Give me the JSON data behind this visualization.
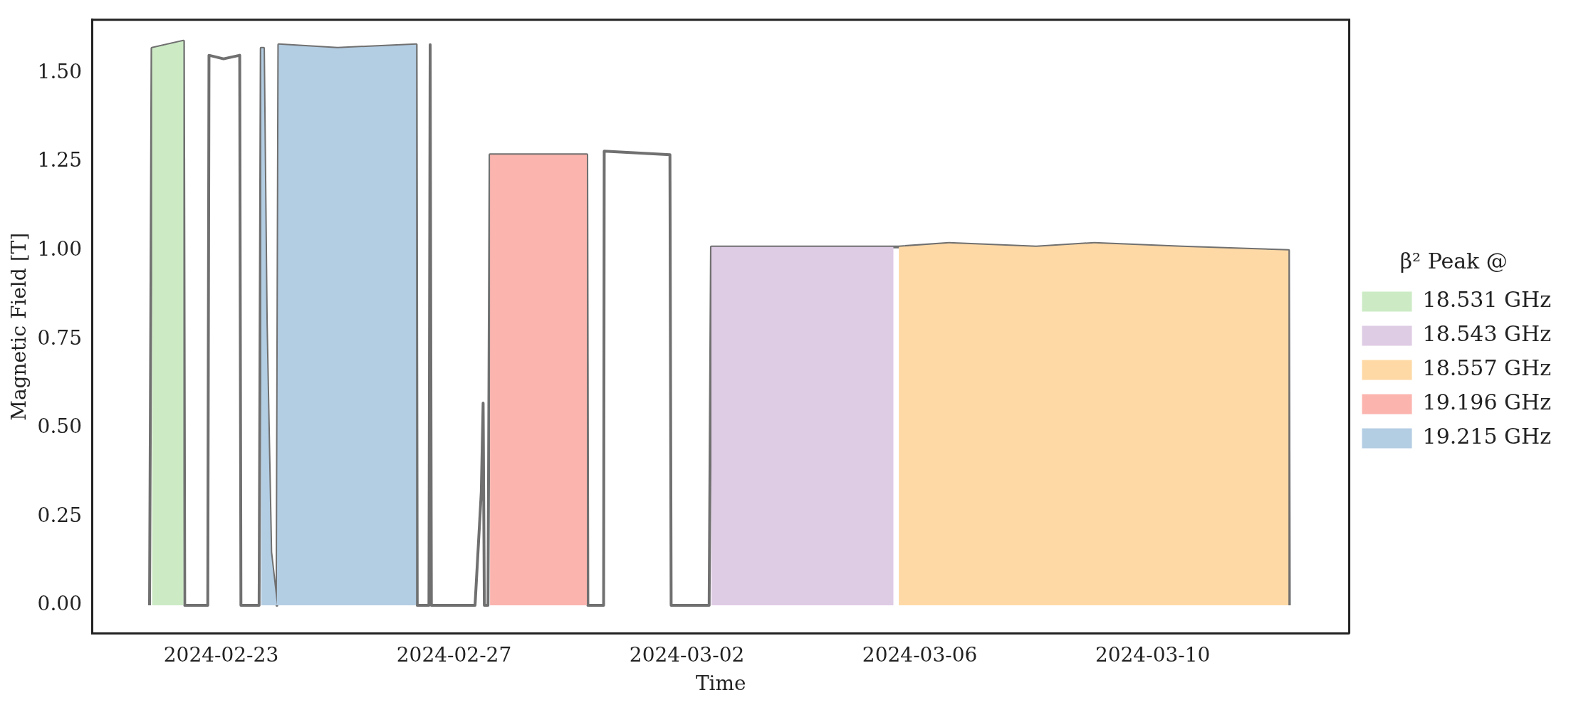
{
  "chart_data": {
    "type": "line",
    "xlabel": "Time",
    "ylabel": "Magnetic Field [T]",
    "legend_title": "β² Peak @",
    "legend": "right",
    "grid": false,
    "marker": "none",
    "xlim": [
      "2024-02-20T19:00",
      "2024-03-13T09:00"
    ],
    "xticks": [
      "2024-02-23",
      "2024-02-27",
      "2024-03-02",
      "2024-03-06",
      "2024-03-10"
    ],
    "ylim": [
      -0.08,
      1.65
    ],
    "yticks": [
      {
        "value": 0,
        "label": "0.00"
      },
      {
        "value": 0.25,
        "label": "0.25"
      },
      {
        "value": 0.5,
        "label": "0.50"
      },
      {
        "value": 0.75,
        "label": "0.75"
      },
      {
        "value": 1,
        "label": "1.00"
      },
      {
        "value": 1.25,
        "label": "1.25"
      },
      {
        "value": 1.5,
        "label": "1.50"
      }
    ],
    "series": [
      {
        "type": "area",
        "name": "18.531 GHz",
        "color": "#ccebc5",
        "x": [
          "2024-02-21T19:30",
          "2024-02-22T08:30"
        ],
        "values": [
          1.57,
          1.59
        ]
      },
      {
        "type": "area",
        "name": "18.543 GHz",
        "color": "#decbe4",
        "x": [
          "2024-03-02T10:05",
          "2024-03-05T13:10"
        ],
        "values": [
          1.01,
          1.01
        ]
      },
      {
        "type": "area",
        "name": "18.557 GHz",
        "color": "#fed9a6",
        "x": [
          "2024-03-05T15:20",
          "2024-03-06T12:00",
          "2024-03-08T00:00",
          "2024-03-09T00:00",
          "2024-03-10T12:00",
          "2024-03-12T08:00"
        ],
        "values": [
          1.01,
          1.02,
          1.01,
          1.02,
          1.01,
          1.0
        ]
      },
      {
        "type": "area",
        "name": "19.196 GHz",
        "color": "#fbb4ae",
        "x": [
          "2024-02-27T14:50",
          "2024-02-29T06:45"
        ],
        "values": [
          1.27,
          1.27
        ]
      },
      {
        "type": "area",
        "name": "19.215 GHz",
        "color": "#b3cde3",
        "x": [
          "2024-02-23T16:30",
          "2024-02-23T17:30",
          "2024-02-23T18:40",
          "2024-02-23T20:30",
          "2024-02-23T23:00",
          "2024-02-23T23:45",
          "2024-02-25T00:00",
          "2024-02-26T08:25"
        ],
        "values": [
          1.57,
          1.57,
          0.8,
          0.15,
          0,
          1.58,
          1.57,
          1.58
        ]
      },
      {
        "color": "#707070",
        "line_style": "solid",
        "x": [
          "2024-02-21T18:30",
          "2024-02-21T19:30",
          "2024-02-22T08:30",
          "2024-02-22T09:00",
          "2024-02-22T18:30",
          "2024-02-22T19:00",
          "2024-02-23T01:00",
          "2024-02-23T07:40",
          "2024-02-23T08:10",
          "2024-02-23T15:40",
          "2024-02-23T16:30",
          "2024-02-23T17:30",
          "2024-02-23T18:40",
          "2024-02-23T20:30",
          "2024-02-23T23:00",
          "2024-02-23T23:45",
          "2024-02-25T00:00",
          "2024-02-26T08:25",
          "2024-02-26T08:50",
          "2024-02-26T13:40",
          "2024-02-26T14:10",
          "2024-02-26T14:40",
          "2024-02-27T08:40",
          "2024-02-27T11:15",
          "2024-02-27T12:00",
          "2024-02-27T12:30",
          "2024-02-27T14:00",
          "2024-02-27T14:50",
          "2024-02-29T06:45",
          "2024-02-29T07:10",
          "2024-02-29T13:40",
          "2024-02-29T13:55",
          "2024-03-01T17:00",
          "2024-03-01T17:30",
          "2024-03-02T09:10",
          "2024-03-02T10:05",
          "2024-03-05T15:20",
          "2024-03-06T12:00",
          "2024-03-08T00:00",
          "2024-03-09T00:00",
          "2024-03-10T12:00",
          "2024-03-12T08:00",
          "2024-03-12T08:20"
        ],
        "values": [
          0,
          1.57,
          1.59,
          0,
          0,
          1.55,
          1.54,
          1.55,
          0,
          0,
          1.57,
          1.57,
          0.8,
          0.15,
          0,
          1.58,
          1.57,
          1.58,
          0,
          0,
          1.58,
          0,
          0,
          0.32,
          0.57,
          0,
          0,
          1.27,
          1.27,
          0,
          0,
          1.28,
          1.27,
          0,
          0,
          1.01,
          1.01,
          1.02,
          1.01,
          1.02,
          1.01,
          1.0,
          0
        ]
      }
    ]
  }
}
